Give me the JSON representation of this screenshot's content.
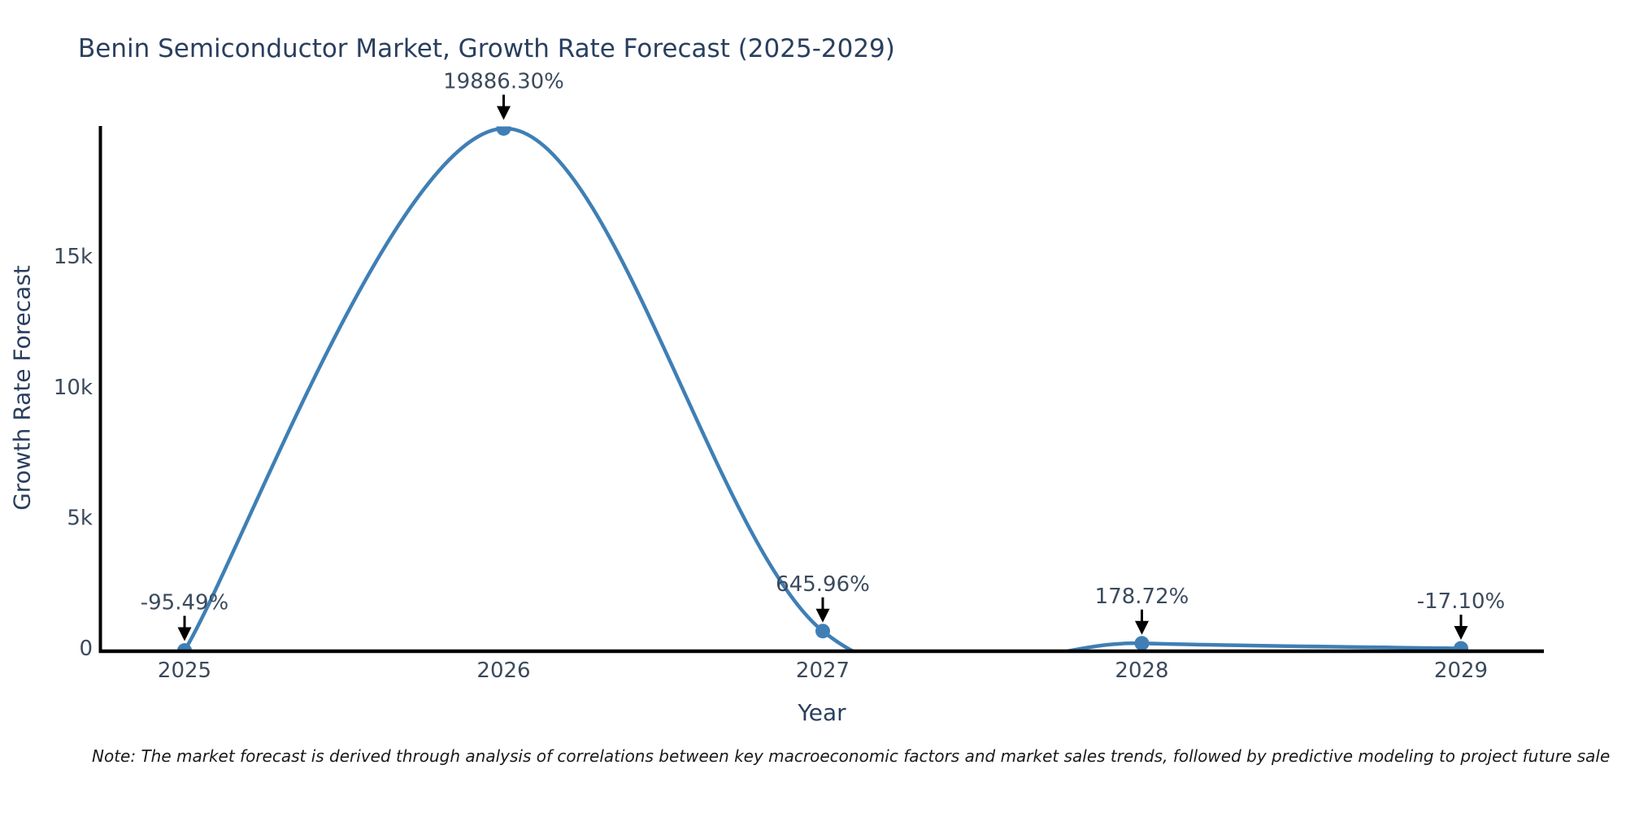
{
  "figure": {
    "note": "Note: The market forecast is derived through analysis of correlations between key macroeconomic factors and market sales trends, followed by predictive modeling to project future sale"
  },
  "chart_data": {
    "type": "line",
    "title": "Benin Semiconductor Market, Growth Rate Forecast (2025-2029)",
    "xlabel": "Year",
    "ylabel": "Growth Rate Forecast",
    "categories": [
      "2025",
      "2026",
      "2027",
      "2028",
      "2029"
    ],
    "values": [
      -95.49,
      19886.3,
      645.96,
      178.72,
      -17.1
    ],
    "point_labels": [
      "-95.49%",
      "19886.30%",
      "645.96%",
      "178.72%",
      "-17.10%"
    ],
    "line_shape": "spline",
    "markers_on": true,
    "grid": false,
    "legend": false,
    "yticks": [
      {
        "value": 0,
        "label": "0"
      },
      {
        "value": 5000,
        "label": "5k"
      },
      {
        "value": 10000,
        "label": "10k"
      },
      {
        "value": 15000,
        "label": "15k"
      }
    ],
    "ylim": [
      -125,
      19950
    ],
    "annotations_arrow": "down",
    "colors": {
      "line": "#3f7fb5",
      "marker": "#3f7fb5",
      "axis": "#000000",
      "title_text": "#2a3f5f",
      "tick_text": "#3b4a5c",
      "annotation_text": "#3b4a5c",
      "arrow": "#000000",
      "note_text": "#1a1a1a",
      "background": "#ffffff"
    }
  }
}
